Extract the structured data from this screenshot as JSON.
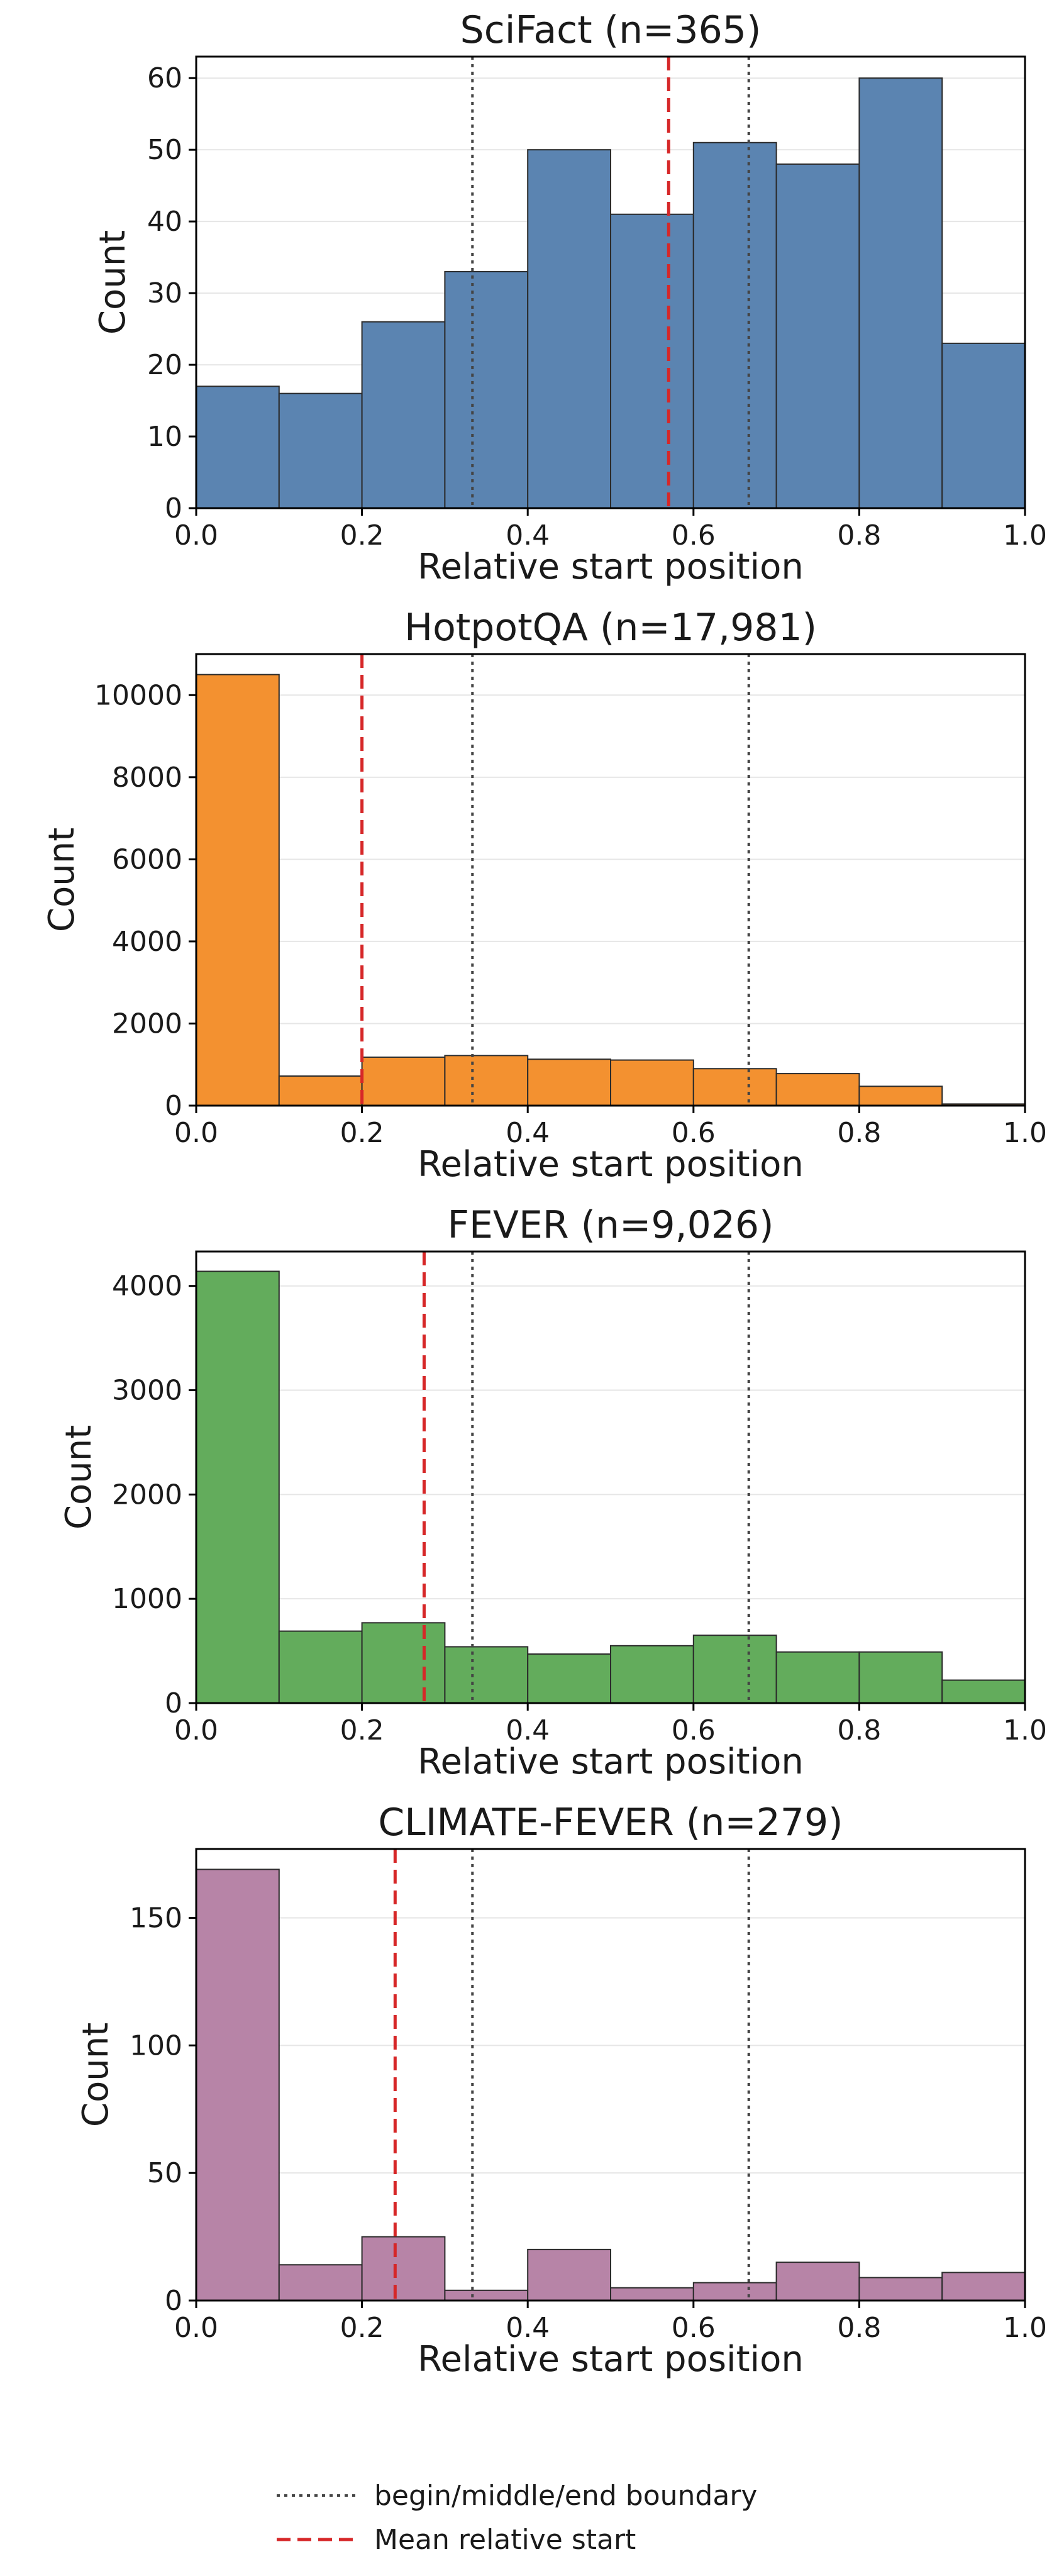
{
  "legend": {
    "boundary_label": "begin/middle/end boundary",
    "mean_label": "Mean relative start"
  },
  "colors": {
    "boundary_line": "#444444",
    "mean_line": "#d62728",
    "grid": "#e6e6e6",
    "bar_edge": "#2b2b2b"
  },
  "chart_data": [
    {
      "type": "bar",
      "title": "SciFact (n=365)",
      "xlabel": "Relative start position",
      "ylabel": "Count",
      "color": "#5b84b1",
      "bin_edges": [
        0.0,
        0.1,
        0.2,
        0.3,
        0.4,
        0.5,
        0.6,
        0.7,
        0.8,
        0.9,
        1.0
      ],
      "values": [
        17,
        16,
        26,
        33,
        50,
        41,
        51,
        48,
        60,
        23
      ],
      "xlim": [
        0,
        1
      ],
      "ylim": [
        0,
        63
      ],
      "xticks": [
        0.0,
        0.2,
        0.4,
        0.6,
        0.8,
        1.0
      ],
      "xtick_labels": [
        "0.0",
        "0.2",
        "0.4",
        "0.6",
        "0.8",
        "1.0"
      ],
      "yticks": [
        0,
        10,
        20,
        30,
        40,
        50,
        60
      ],
      "ytick_labels": [
        "0",
        "10",
        "20",
        "30",
        "40",
        "50",
        "60"
      ],
      "mean": 0.57,
      "boundaries": [
        0.3333,
        0.6667
      ],
      "grid": "y"
    },
    {
      "type": "bar",
      "title": "HotpotQA (n=17,981)",
      "xlabel": "Relative start position",
      "ylabel": "Count",
      "color": "#f39130",
      "bin_edges": [
        0.0,
        0.1,
        0.2,
        0.3,
        0.4,
        0.5,
        0.6,
        0.7,
        0.8,
        0.9,
        1.0
      ],
      "values": [
        10500,
        720,
        1180,
        1220,
        1130,
        1110,
        900,
        780,
        470,
        40
      ],
      "xlim": [
        0,
        1
      ],
      "ylim": [
        0,
        11000
      ],
      "xticks": [
        0.0,
        0.2,
        0.4,
        0.6,
        0.8,
        1.0
      ],
      "xtick_labels": [
        "0.0",
        "0.2",
        "0.4",
        "0.6",
        "0.8",
        "1.0"
      ],
      "yticks": [
        0,
        2000,
        4000,
        6000,
        8000,
        10000
      ],
      "ytick_labels": [
        "0",
        "2000",
        "4000",
        "6000",
        "8000",
        "10000"
      ],
      "mean": 0.2,
      "boundaries": [
        0.3333,
        0.6667
      ],
      "grid": "y"
    },
    {
      "type": "bar",
      "title": "FEVER (n=9,026)",
      "xlabel": "Relative start position",
      "ylabel": "Count",
      "color": "#63ac5c",
      "bin_edges": [
        0.0,
        0.1,
        0.2,
        0.3,
        0.4,
        0.5,
        0.6,
        0.7,
        0.8,
        0.9,
        1.0
      ],
      "values": [
        4140,
        690,
        770,
        540,
        470,
        550,
        650,
        490,
        490,
        220
      ],
      "xlim": [
        0,
        1
      ],
      "ylim": [
        0,
        4330
      ],
      "xticks": [
        0.0,
        0.2,
        0.4,
        0.6,
        0.8,
        1.0
      ],
      "xtick_labels": [
        "0.0",
        "0.2",
        "0.4",
        "0.6",
        "0.8",
        "1.0"
      ],
      "yticks": [
        0,
        1000,
        2000,
        3000,
        4000
      ],
      "ytick_labels": [
        "0",
        "1000",
        "2000",
        "3000",
        "4000"
      ],
      "mean": 0.275,
      "boundaries": [
        0.3333,
        0.6667
      ],
      "grid": "y"
    },
    {
      "type": "bar",
      "title": "CLIMATE-FEVER (n=279)",
      "xlabel": "Relative start position",
      "ylabel": "Count",
      "color": "#b784a7",
      "bin_edges": [
        0.0,
        0.1,
        0.2,
        0.3,
        0.4,
        0.5,
        0.6,
        0.7,
        0.8,
        0.9,
        1.0
      ],
      "values": [
        169,
        14,
        25,
        4,
        20,
        5,
        7,
        15,
        9,
        11
      ],
      "xlim": [
        0,
        1
      ],
      "ylim": [
        0,
        177
      ],
      "xticks": [
        0.0,
        0.2,
        0.4,
        0.6,
        0.8,
        1.0
      ],
      "xtick_labels": [
        "0.0",
        "0.2",
        "0.4",
        "0.6",
        "0.8",
        "1.0"
      ],
      "yticks": [
        0,
        50,
        100,
        150
      ],
      "ytick_labels": [
        "0",
        "50",
        "100",
        "150"
      ],
      "mean": 0.24,
      "boundaries": [
        0.3333,
        0.6667
      ],
      "grid": "y"
    }
  ]
}
